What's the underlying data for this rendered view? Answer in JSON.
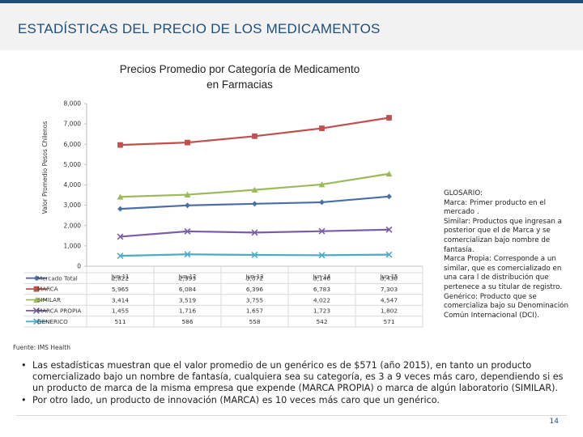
{
  "slide": {
    "title": "ESTADÍSTICAS DEL PRECIO DE LOS MEDICAMENTOS",
    "source": "Fuente: IMS Health",
    "page_number": "14",
    "bullets": [
      "Las estadísticas muestran que el valor promedio de un genérico es de $571 (año 2015), en tanto un producto comercializado bajo un nombre de fantasía, cualquiera sea su categoría, es 3 a 9 veces más caro, dependiendo si es un producto de marca de la misma empresa que expende (MARCA PROPIA) o marca de algún laboratorio (SIMILAR).",
      "Por otro lado, un producto de innovación (MARCA) es 10 veces más caro que un genérico."
    ],
    "glossary": [
      "GLOSARIO:",
      "Marca: Primer producto en el mercado .",
      "Similar: Productos que ingresan a posterior que el de Marca y se comercializan bajo nombre de fantasía.",
      "Marca Propia: Corresponde a un similar, que es comercializado en una cara l de distribución que pertenece a su titular de registro.",
      "Genérico: Producto que se comercializa bajo su Denominación Común Internacional (DCI)."
    ]
  },
  "chart_data": {
    "type": "line",
    "title_lines": [
      "Precios Promedio por Categoría de Medicamento",
      "en Farmacias"
    ],
    "ylabel": "Valor Promedio Pesos Chilenos",
    "xlabel": "",
    "ylim": [
      0,
      8000
    ],
    "y_ticks": [
      "0",
      "1,000",
      "2,000",
      "3,000",
      "4,000",
      "5,000",
      "6,000",
      "7,000",
      "8,000"
    ],
    "categories": [
      "Jun-11",
      "Jun-12",
      "Jun-13",
      "Jun-14",
      "Jun-15"
    ],
    "grid": false,
    "legend": "table-below",
    "series": [
      {
        "name": "Mercado Total",
        "color": "#4a6fa5",
        "marker": "diamond",
        "values": [
          2822,
          2993,
          3072,
          3146,
          3430
        ],
        "labels": [
          "2,822",
          "2,993",
          "3,072",
          "3,146",
          "3,430"
        ]
      },
      {
        "name": "MARCA",
        "color": "#c0504d",
        "marker": "square",
        "values": [
          5965,
          6084,
          6396,
          6783,
          7303
        ],
        "labels": [
          "5,965",
          "6,084",
          "6,396",
          "6,783",
          "7,303"
        ]
      },
      {
        "name": "SIMILAR",
        "color": "#9bbb59",
        "marker": "triangle",
        "values": [
          3414,
          3519,
          3755,
          4022,
          4547
        ],
        "labels": [
          "3,414",
          "3,519",
          "3,755",
          "4,022",
          "4,547"
        ]
      },
      {
        "name": "MARCA PROPIA",
        "color": "#7b5ea7",
        "marker": "x",
        "values": [
          1455,
          1716,
          1657,
          1723,
          1802
        ],
        "labels": [
          "1,455",
          "1,716",
          "1,657",
          "1,723",
          "1,802"
        ]
      },
      {
        "name": "GENERICO",
        "color": "#4bacc6",
        "marker": "x",
        "values": [
          511,
          586,
          558,
          542,
          571
        ],
        "labels": [
          "511",
          "586",
          "558",
          "542",
          "571"
        ]
      }
    ]
  }
}
